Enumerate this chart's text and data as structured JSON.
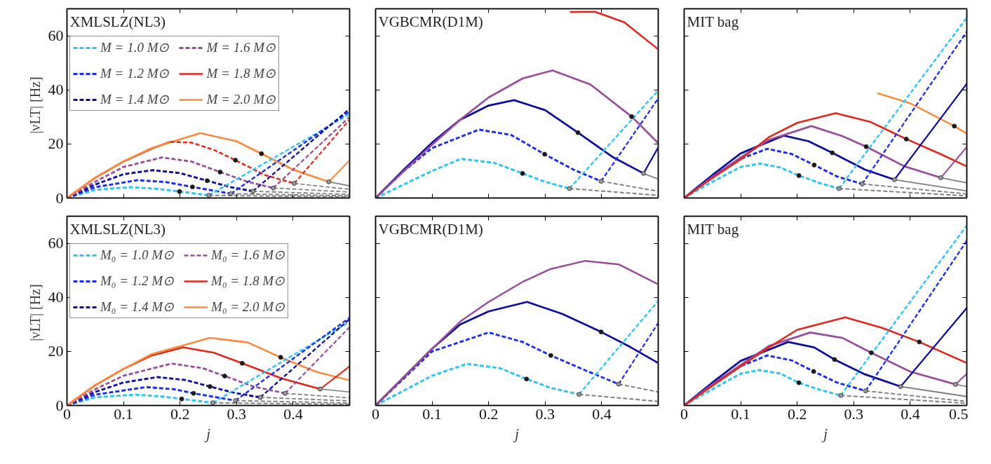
{
  "chart_data": [
    {
      "type": "line",
      "title": "XMLSLZ(NL3)",
      "ylabel": "|νLT|  [Hz]",
      "xlim": [
        0,
        0.5
      ],
      "ylim": [
        0,
        70
      ],
      "xticks": [
        0,
        0.1,
        0.2,
        0.3,
        0.4
      ],
      "yticks": [
        0,
        20,
        40,
        60
      ],
      "tick_labels": "y",
      "legend": "top left",
      "series": [
        {
          "name": "M = 1.0 M⊙",
          "color": "#2ec4f5",
          "line_style": "dashed",
          "x": [
            0,
            0.05,
            0.111,
            0.16,
            0.199,
            0.251
          ],
          "values": [
            0,
            3,
            4,
            3.4,
            2.4,
            1.0
          ]
        },
        {
          "name": "M = 1.2 M⊙",
          "color": "#1a2cf0",
          "line_style": "dashed",
          "x": [
            0,
            0.05,
            0.125,
            0.175,
            0.222,
            0.29
          ],
          "values": [
            0,
            4,
            6.6,
            5.9,
            4.1,
            1.6
          ]
        },
        {
          "name": "M = 1.4 M⊙",
          "color": "#0c0c9e",
          "line_style": "dashed",
          "x": [
            0,
            0.05,
            0.1,
            0.152,
            0.2,
            0.248,
            0.29,
            0.329
          ],
          "values": [
            0,
            5,
            8.8,
            10.3,
            9.2,
            6.4,
            4,
            2.5
          ]
        },
        {
          "name": "M = 1.6 M⊙",
          "color": "#9a4c9c",
          "line_style": "dashed",
          "x": [
            0,
            0.05,
            0.1,
            0.168,
            0.22,
            0.271,
            0.32,
            0.365
          ],
          "values": [
            0,
            6,
            11.5,
            15,
            13.5,
            9.6,
            6,
            3.7
          ]
        },
        {
          "name": "M = 1.8 M⊙",
          "color": "#e2261c",
          "line_style": "solid",
          "x": [
            0,
            0.05,
            0.1,
            0.15,
            0.183
          ],
          "values": [
            0,
            7.5,
            13.5,
            18.3,
            20.8
          ]
        },
        {
          "name": "M = 2.0 M⊙",
          "color": "#f98a3c",
          "line_style": "solid",
          "x": [
            0,
            0.05,
            0.1,
            0.15,
            0.236,
            0.3,
            0.344,
            0.4,
            0.463
          ],
          "values": [
            0,
            7.5,
            13.5,
            18.5,
            24,
            21,
            16.4,
            10.5,
            6.0
          ]
        },
        {
          "color": "#e2261c",
          "line_style": "dashed",
          "x": [
            0.183,
            0.22,
            0.26,
            0.298,
            0.35,
            0.402
          ],
          "values": [
            20.8,
            20.5,
            17.8,
            14.0,
            8.5,
            5.4
          ]
        },
        {
          "color": "#2ec4f5",
          "line_style": "dashed",
          "x": [
            0.251,
            0.5
          ],
          "values": [
            1.0,
            31
          ]
        },
        {
          "color": "#1a2cf0",
          "line_style": "dashed",
          "x": [
            0.29,
            0.5
          ],
          "values": [
            1.6,
            32
          ]
        },
        {
          "color": "#0c0c9e",
          "line_style": "dashed",
          "x": [
            0.329,
            0.5
          ],
          "values": [
            2.5,
            33
          ]
        },
        {
          "color": "#9a4c9c",
          "line_style": "dashed",
          "x": [
            0.365,
            0.5
          ],
          "values": [
            3.7,
            30
          ]
        },
        {
          "color": "#e2261c",
          "line_style": "dashed",
          "x": [
            0.402,
            0.5
          ],
          "values": [
            5.4,
            29
          ]
        },
        {
          "color": "#f98a3c",
          "line_style": "solid",
          "x": [
            0.463,
            0.5
          ],
          "values": [
            6.0,
            14
          ]
        },
        {
          "color": "#808080",
          "line_style": "dashed",
          "x": [
            0.251,
            0.5
          ],
          "values": [
            1.0,
            0.4
          ]
        },
        {
          "color": "#808080",
          "line_style": "dashed",
          "x": [
            0.29,
            0.5
          ],
          "values": [
            1.6,
            0.8
          ]
        },
        {
          "color": "#808080",
          "line_style": "dashed",
          "x": [
            0.329,
            0.5
          ],
          "values": [
            2.5,
            1.3
          ]
        },
        {
          "color": "#808080",
          "line_style": "dashed",
          "x": [
            0.365,
            0.5
          ],
          "values": [
            3.7,
            2.2
          ]
        },
        {
          "color": "#808080",
          "line_style": "dashed",
          "x": [
            0.402,
            0.5
          ],
          "values": [
            5.4,
            3.2
          ]
        },
        {
          "color": "#808080",
          "line_style": "solid",
          "x": [
            0.463,
            0.5
          ],
          "values": [
            6.0,
            4.5
          ]
        },
        {
          "type": "scatter",
          "marker": "circle",
          "color": "#1a1a1a",
          "x": [
            0.344,
            0.298,
            0.271,
            0.248,
            0.222,
            0.199
          ],
          "values": [
            16.4,
            14.0,
            9.6,
            6.4,
            4.1,
            2.4
          ]
        },
        {
          "type": "scatter",
          "marker": "circle",
          "color": "#9a9a9a",
          "x": [
            0.463,
            0.402,
            0.365,
            0.329,
            0.29,
            0.251
          ],
          "values": [
            6.0,
            5.4,
            3.7,
            2.5,
            1.6,
            1.0
          ]
        }
      ]
    },
    {
      "type": "line",
      "title": "VGBCMR(D1M)",
      "xlim": [
        0,
        0.5
      ],
      "ylim": [
        0,
        70
      ],
      "xticks": [
        0,
        0.1,
        0.2,
        0.3,
        0.4
      ],
      "yticks": [
        0,
        20,
        40,
        60
      ],
      "tick_labels": false,
      "series": [
        {
          "color": "#2ec4f5",
          "line_style": "dashed",
          "x": [
            0,
            0.05,
            0.1,
            0.151,
            0.21,
            0.26,
            0.3,
            0.343
          ],
          "values": [
            0,
            5,
            10,
            14.5,
            13,
            9.1,
            6,
            3.5
          ]
        },
        {
          "color": "#1a2cf0",
          "line_style": "dashed",
          "x": [
            0,
            0.05,
            0.1,
            0.183,
            0.24,
            0.299,
            0.35,
            0.399
          ],
          "values": [
            0,
            10,
            18.5,
            25.3,
            23.3,
            16.2,
            10.5,
            6.2
          ]
        },
        {
          "color": "#0c0c9e",
          "line_style": "solid",
          "x": [
            0,
            0.05,
            0.1,
            0.15,
            0.2,
            0.245,
            0.3,
            0.358,
            0.42,
            0.474
          ],
          "values": [
            0,
            10.5,
            20.5,
            29,
            34.2,
            36.2,
            32.5,
            24.2,
            15.1,
            9.1
          ]
        },
        {
          "color": "#9a4c9c",
          "line_style": "solid",
          "x": [
            0,
            0.05,
            0.1,
            0.15,
            0.2,
            0.26,
            0.313,
            0.38,
            0.453,
            0.5
          ],
          "values": [
            0,
            10,
            19.7,
            29,
            37.2,
            44.2,
            47.2,
            42,
            30.1,
            20.3
          ]
        },
        {
          "color": "#e2261c",
          "line_style": "solid",
          "x": [
            0.344,
            0.388,
            0.44,
            0.5
          ],
          "values": [
            68.8,
            68.9,
            65,
            55
          ]
        },
        {
          "color": "#2ec4f5",
          "line_style": "dashed",
          "x": [
            0.343,
            0.5
          ],
          "values": [
            3.5,
            39.8
          ]
        },
        {
          "color": "#1a2cf0",
          "line_style": "dashed",
          "x": [
            0.399,
            0.5
          ],
          "values": [
            6.2,
            36.8
          ]
        },
        {
          "color": "#0c0c9e",
          "line_style": "solid",
          "x": [
            0.474,
            0.5
          ],
          "values": [
            9.1,
            18.7
          ]
        },
        {
          "color": "#808080",
          "line_style": "dashed",
          "x": [
            0.343,
            0.5
          ],
          "values": [
            3.5,
            1.0
          ]
        },
        {
          "color": "#808080",
          "line_style": "dashed",
          "x": [
            0.399,
            0.5
          ],
          "values": [
            6.2,
            2.5
          ]
        },
        {
          "color": "#808080",
          "line_style": "solid",
          "x": [
            0.474,
            0.5
          ],
          "values": [
            9.1,
            7.0
          ]
        },
        {
          "type": "scatter",
          "marker": "circle",
          "color": "#1a1a1a",
          "x": [
            0.453,
            0.358,
            0.299,
            0.26
          ],
          "values": [
            30.1,
            24.2,
            16.2,
            9.1
          ]
        },
        {
          "type": "scatter",
          "marker": "circle",
          "color": "#9a9a9a",
          "x": [
            0.474,
            0.399,
            0.343
          ],
          "values": [
            9.1,
            6.2,
            3.5
          ]
        }
      ]
    },
    {
      "type": "line",
      "title": "MIT bag",
      "xlim": [
        0,
        0.5
      ],
      "ylim": [
        0,
        70
      ],
      "xticks": [
        0,
        0.1,
        0.2,
        0.3,
        0.4
      ],
      "yticks": [
        0,
        20,
        40,
        60
      ],
      "tick_labels": false,
      "series": [
        {
          "color": "#2ec4f5",
          "line_style": "dashed",
          "x": [
            0,
            0.05,
            0.1,
            0.135,
            0.17,
            0.203,
            0.24,
            0.274
          ],
          "values": [
            0,
            6,
            11.5,
            12.7,
            11.3,
            8.3,
            5.5,
            3.5
          ]
        },
        {
          "color": "#1a2cf0",
          "line_style": "dashed",
          "x": [
            0,
            0.05,
            0.1,
            0.147,
            0.19,
            0.23,
            0.27,
            0.315
          ],
          "values": [
            0,
            8,
            14.5,
            18.2,
            16.3,
            12.2,
            8,
            5.2
          ]
        },
        {
          "color": "#0c0c9e",
          "line_style": "solid",
          "x": [
            0,
            0.05,
            0.1,
            0.176,
            0.22,
            0.262,
            0.32,
            0.372
          ],
          "values": [
            0,
            8.5,
            16.5,
            23.1,
            21,
            16.7,
            10.5,
            6.8
          ]
        },
        {
          "color": "#9a4c9c",
          "line_style": "solid",
          "x": [
            0,
            0.05,
            0.1,
            0.15,
            0.225,
            0.28,
            0.322,
            0.39,
            0.454
          ],
          "values": [
            0,
            7.8,
            15,
            21.5,
            26.6,
            22.9,
            19.0,
            11.7,
            7.5
          ]
        },
        {
          "color": "#e2261c",
          "line_style": "solid",
          "x": [
            0,
            0.05,
            0.1,
            0.15,
            0.2,
            0.268,
            0.33,
            0.393,
            0.45,
            0.5
          ],
          "values": [
            0,
            7.4,
            14.3,
            22.5,
            27.8,
            31.4,
            28.1,
            21.8,
            16.6,
            11.7
          ]
        },
        {
          "color": "#f98a3c",
          "line_style": "solid",
          "x": [
            0.342,
            0.4,
            0.478,
            0.5
          ],
          "values": [
            38.8,
            35,
            26.6,
            23.8
          ]
        },
        {
          "color": "#2ec4f5",
          "line_style": "dashed",
          "x": [
            0.274,
            0.5
          ],
          "values": [
            3.5,
            66.7
          ]
        },
        {
          "color": "#1a2cf0",
          "line_style": "dashed",
          "x": [
            0.315,
            0.5
          ],
          "values": [
            5.2,
            61.5
          ]
        },
        {
          "color": "#0c0c9e",
          "line_style": "solid",
          "x": [
            0.372,
            0.5
          ],
          "values": [
            6.8,
            42.3
          ]
        },
        {
          "color": "#9a4c9c",
          "line_style": "solid",
          "x": [
            0.454,
            0.5
          ],
          "values": [
            7.5,
            18.9
          ]
        },
        {
          "color": "#808080",
          "line_style": "dashed",
          "x": [
            0.274,
            0.5
          ],
          "values": [
            3.5,
            0.8
          ]
        },
        {
          "color": "#808080",
          "line_style": "dashed",
          "x": [
            0.315,
            0.5
          ],
          "values": [
            5.2,
            1.5
          ]
        },
        {
          "color": "#808080",
          "line_style": "solid",
          "x": [
            0.372,
            0.5
          ],
          "values": [
            6.8,
            2.6
          ]
        },
        {
          "color": "#808080",
          "line_style": "solid",
          "x": [
            0.454,
            0.5
          ],
          "values": [
            7.5,
            5.6
          ]
        },
        {
          "type": "scatter",
          "marker": "circle",
          "color": "#1a1a1a",
          "x": [
            0.478,
            0.393,
            0.322,
            0.262,
            0.23,
            0.203
          ],
          "values": [
            26.6,
            21.8,
            19.0,
            16.7,
            12.2,
            8.3
          ]
        },
        {
          "type": "scatter",
          "marker": "circle",
          "color": "#9a9a9a",
          "x": [
            0.454,
            0.372,
            0.315,
            0.274
          ],
          "values": [
            7.5,
            6.8,
            5.2,
            3.5
          ]
        }
      ]
    },
    {
      "type": "line",
      "title": "XMLSLZ(NL3)",
      "xlabel": "j",
      "ylabel": "|νLT|  [Hz]",
      "xlim": [
        0,
        0.5
      ],
      "ylim": [
        0,
        70
      ],
      "xticks": [
        0,
        0.1,
        0.2,
        0.3,
        0.4
      ],
      "yticks": [
        0,
        20,
        40,
        60
      ],
      "legend": "top left",
      "series": [
        {
          "name": "M₀ = 1.0 M⊙",
          "color": "#2ec4f5",
          "line_style": "dashed",
          "x": [
            0,
            0.05,
            0.12,
            0.17,
            0.203,
            0.258
          ],
          "values": [
            0,
            3,
            4,
            3.3,
            2.4,
            1.0
          ]
        },
        {
          "name": "M₀ = 1.2 M⊙",
          "color": "#1a2cf0",
          "line_style": "dashed",
          "x": [
            0,
            0.05,
            0.14,
            0.19,
            0.224,
            0.298
          ],
          "values": [
            0,
            4,
            6.8,
            6.0,
            4.5,
            1.8
          ]
        },
        {
          "name": "M₀ = 1.4 M⊙",
          "color": "#0c0c9e",
          "line_style": "dashed",
          "x": [
            0,
            0.05,
            0.1,
            0.16,
            0.21,
            0.253,
            0.3,
            0.342
          ],
          "values": [
            0,
            5,
            8.5,
            10.5,
            9.4,
            7.0,
            4.5,
            3.0
          ]
        },
        {
          "name": "M₀ = 1.6 M⊙",
          "color": "#9a4c9c",
          "line_style": "dashed",
          "x": [
            0,
            0.05,
            0.1,
            0.185,
            0.24,
            0.279,
            0.33,
            0.386
          ],
          "values": [
            0,
            6,
            11,
            15.5,
            13.8,
            10.9,
            7,
            4.5
          ]
        },
        {
          "name": "M₀ = 1.8 M⊙",
          "color": "#e2261c",
          "line_style": "solid",
          "x": [
            0,
            0.05,
            0.1,
            0.15,
            0.205,
            0.26,
            0.31,
            0.38,
            0.448
          ],
          "values": [
            0,
            7.5,
            13.5,
            18.5,
            21.5,
            19.5,
            15.6,
            10,
            6.1
          ]
        },
        {
          "name": "M₀ = 2.0 M⊙",
          "color": "#f98a3c",
          "line_style": "solid",
          "x": [
            0,
            0.05,
            0.1,
            0.15,
            0.253,
            0.32,
            0.378,
            0.44,
            0.5
          ],
          "values": [
            0,
            7.5,
            13.5,
            19,
            25,
            23.3,
            17.8,
            12.5,
            9.3
          ]
        },
        {
          "color": "#2ec4f5",
          "line_style": "dashed",
          "x": [
            0.258,
            0.5
          ],
          "values": [
            1.0,
            31
          ]
        },
        {
          "color": "#1a2cf0",
          "line_style": "dashed",
          "x": [
            0.298,
            0.5
          ],
          "values": [
            1.8,
            32.5
          ]
        },
        {
          "color": "#0c0c9e",
          "line_style": "dashed",
          "x": [
            0.342,
            0.5
          ],
          "values": [
            3.0,
            32
          ]
        },
        {
          "color": "#9a4c9c",
          "line_style": "dashed",
          "x": [
            0.386,
            0.5
          ],
          "values": [
            4.5,
            29
          ]
        },
        {
          "color": "#e2261c",
          "line_style": "solid",
          "x": [
            0.448,
            0.5
          ],
          "values": [
            6.1,
            14.5
          ]
        },
        {
          "color": "#808080",
          "line_style": "dashed",
          "x": [
            0.258,
            0.5
          ],
          "values": [
            1.0,
            0.4
          ]
        },
        {
          "color": "#808080",
          "line_style": "dashed",
          "x": [
            0.298,
            0.5
          ],
          "values": [
            1.8,
            0.9
          ]
        },
        {
          "color": "#808080",
          "line_style": "dashed",
          "x": [
            0.342,
            0.5
          ],
          "values": [
            3.0,
            1.7
          ]
        },
        {
          "color": "#808080",
          "line_style": "dashed",
          "x": [
            0.386,
            0.5
          ],
          "values": [
            4.5,
            2.8
          ]
        },
        {
          "color": "#808080",
          "line_style": "solid",
          "x": [
            0.448,
            0.5
          ],
          "values": [
            6.1,
            5.0
          ]
        },
        {
          "type": "scatter",
          "marker": "circle",
          "color": "#1a1a1a",
          "x": [
            0.378,
            0.31,
            0.279,
            0.253,
            0.224,
            0.203
          ],
          "values": [
            17.8,
            15.6,
            10.9,
            7.0,
            4.5,
            2.4
          ]
        },
        {
          "type": "scatter",
          "marker": "circle",
          "color": "#9a9a9a",
          "x": [
            0.448,
            0.386,
            0.342,
            0.298,
            0.258
          ],
          "values": [
            6.1,
            4.5,
            3.0,
            1.8,
            1.0
          ]
        }
      ]
    },
    {
      "type": "line",
      "title": "VGBCMR(D1M)",
      "xlabel": "j",
      "xlim": [
        0,
        0.5
      ],
      "ylim": [
        0,
        70
      ],
      "xticks": [
        0,
        0.1,
        0.2,
        0.3,
        0.4
      ],
      "yticks": [
        0,
        20,
        40,
        60
      ],
      "tick_labels": "x",
      "series": [
        {
          "color": "#2ec4f5",
          "line_style": "dashed",
          "x": [
            0,
            0.05,
            0.1,
            0.162,
            0.22,
            0.267,
            0.31,
            0.36
          ],
          "values": [
            0,
            5.5,
            11,
            15.4,
            13.8,
            9.8,
            6.5,
            4.1
          ]
        },
        {
          "color": "#1a2cf0",
          "line_style": "dashed",
          "x": [
            0,
            0.05,
            0.1,
            0.2,
            0.26,
            0.31,
            0.37,
            0.43
          ],
          "values": [
            0,
            10,
            20,
            27.0,
            23.5,
            18.5,
            13.1,
            7.9
          ]
        },
        {
          "color": "#0c0c9e",
          "line_style": "solid",
          "x": [
            0,
            0.05,
            0.1,
            0.15,
            0.2,
            0.268,
            0.33,
            0.399,
            0.45,
            0.5
          ],
          "values": [
            0,
            10.5,
            21,
            30,
            34.8,
            38.3,
            33.9,
            27.2,
            21.7,
            15.7
          ]
        },
        {
          "color": "#9a4c9c",
          "line_style": "solid",
          "x": [
            0,
            0.05,
            0.1,
            0.15,
            0.2,
            0.26,
            0.31,
            0.371,
            0.43,
            0.5
          ],
          "values": [
            0,
            10.4,
            20.9,
            31.1,
            38.3,
            45.7,
            50.5,
            53.5,
            52.2,
            44.8
          ]
        },
        {
          "color": "#2ec4f5",
          "line_style": "dashed",
          "x": [
            0.36,
            0.5
          ],
          "values": [
            4.1,
            38.7
          ]
        },
        {
          "color": "#1a2cf0",
          "line_style": "dashed",
          "x": [
            0.43,
            0.5
          ],
          "values": [
            7.9,
            30.5
          ]
        },
        {
          "color": "#808080",
          "line_style": "dashed",
          "x": [
            0.36,
            0.5
          ],
          "values": [
            4.1,
            1.5
          ]
        },
        {
          "color": "#808080",
          "line_style": "dashed",
          "x": [
            0.43,
            0.5
          ],
          "values": [
            7.9,
            5.0
          ]
        },
        {
          "type": "scatter",
          "marker": "circle",
          "color": "#1a1a1a",
          "x": [
            0.399,
            0.31,
            0.267
          ],
          "values": [
            27.2,
            18.5,
            9.8
          ]
        },
        {
          "type": "scatter",
          "marker": "circle",
          "color": "#9a9a9a",
          "x": [
            0.43,
            0.36
          ],
          "values": [
            7.9,
            4.1
          ]
        }
      ]
    },
    {
      "type": "line",
      "title": "MIT bag",
      "xlabel": "j",
      "xlim": [
        0,
        0.5
      ],
      "ylim": [
        0,
        70
      ],
      "xticks": [
        0,
        0.1,
        0.2,
        0.3,
        0.4,
        0.5
      ],
      "yticks": [
        0,
        20,
        40,
        60
      ],
      "tick_labels": "x",
      "series": [
        {
          "color": "#2ec4f5",
          "line_style": "dashed",
          "x": [
            0,
            0.05,
            0.1,
            0.133,
            0.17,
            0.203,
            0.24,
            0.277
          ],
          "values": [
            0,
            6,
            11.8,
            13.1,
            11.8,
            8.4,
            5.8,
            3.7
          ]
        },
        {
          "color": "#1a2cf0",
          "line_style": "dashed",
          "x": [
            0,
            0.05,
            0.1,
            0.147,
            0.19,
            0.229,
            0.27,
            0.321
          ],
          "values": [
            0,
            8,
            14.5,
            18.5,
            16.7,
            12.6,
            8.5,
            5.4
          ]
        },
        {
          "color": "#0c0c9e",
          "line_style": "solid",
          "x": [
            0,
            0.05,
            0.1,
            0.184,
            0.23,
            0.266,
            0.32,
            0.383
          ],
          "values": [
            0,
            8.5,
            16.5,
            23.5,
            21.5,
            17.0,
            11.5,
            7.0
          ]
        },
        {
          "color": "#9a4c9c",
          "line_style": "solid",
          "x": [
            0,
            0.05,
            0.1,
            0.15,
            0.223,
            0.28,
            0.331,
            0.4,
            0.48
          ],
          "values": [
            0,
            7.8,
            15,
            22,
            27.0,
            25,
            19.5,
            12.5,
            7.8
          ]
        },
        {
          "color": "#e2261c",
          "line_style": "solid",
          "x": [
            0,
            0.05,
            0.1,
            0.15,
            0.2,
            0.285,
            0.35,
            0.416,
            0.5
          ],
          "values": [
            0,
            7.3,
            14.5,
            21.5,
            28,
            32.6,
            28.7,
            23.5,
            15.7
          ]
        },
        {
          "color": "#2ec4f5",
          "line_style": "dashed",
          "x": [
            0.277,
            0.5
          ],
          "values": [
            3.7,
            66.6
          ]
        },
        {
          "color": "#1a2cf0",
          "line_style": "dashed",
          "x": [
            0.321,
            0.5
          ],
          "values": [
            5.4,
            60.9
          ]
        },
        {
          "color": "#0c0c9e",
          "line_style": "solid",
          "x": [
            0.383,
            0.5
          ],
          "values": [
            7.0,
            36.1
          ]
        },
        {
          "color": "#9a4c9c",
          "line_style": "solid",
          "x": [
            0.48,
            0.5
          ],
          "values": [
            7.8,
            11.7
          ]
        },
        {
          "color": "#808080",
          "line_style": "dashed",
          "x": [
            0.277,
            0.5
          ],
          "values": [
            3.7,
            0.8
          ]
        },
        {
          "color": "#808080",
          "line_style": "dashed",
          "x": [
            0.321,
            0.5
          ],
          "values": [
            5.4,
            1.5
          ]
        },
        {
          "color": "#808080",
          "line_style": "solid",
          "x": [
            0.383,
            0.5
          ],
          "values": [
            7.0,
            3.3
          ]
        },
        {
          "color": "#808080",
          "line_style": "solid",
          "x": [
            0.48,
            0.5
          ],
          "values": [
            7.8,
            7.0
          ]
        },
        {
          "type": "scatter",
          "marker": "circle",
          "color": "#1a1a1a",
          "x": [
            0.416,
            0.331,
            0.266,
            0.229,
            0.203
          ],
          "values": [
            23.5,
            19.5,
            17.0,
            12.6,
            8.4
          ]
        },
        {
          "type": "scatter",
          "marker": "circle",
          "color": "#9a9a9a",
          "x": [
            0.48,
            0.383,
            0.321,
            0.277
          ],
          "values": [
            7.8,
            7.0,
            5.4,
            3.7
          ]
        }
      ]
    }
  ]
}
